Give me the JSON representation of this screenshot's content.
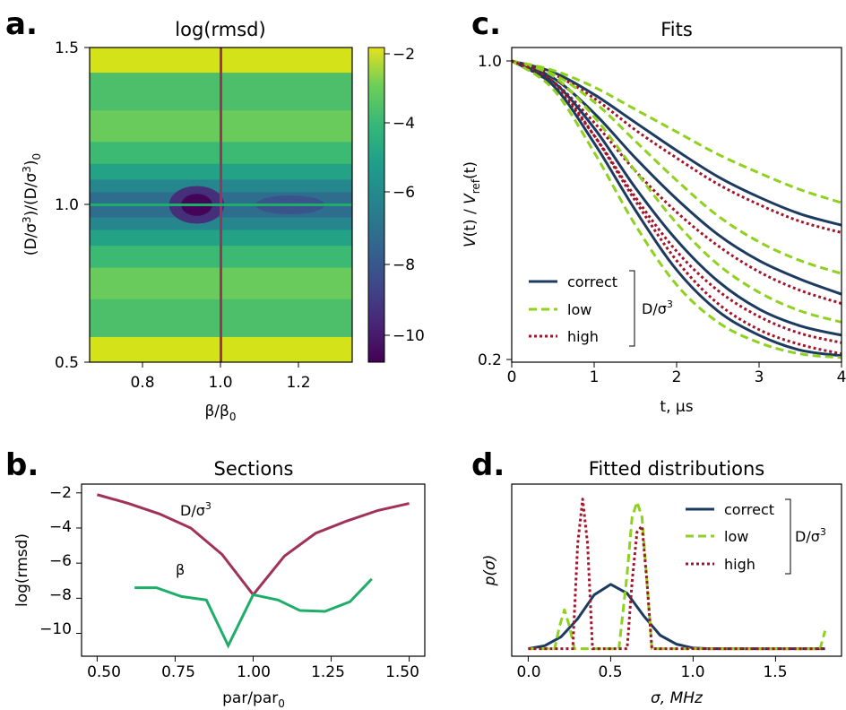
{
  "panels": {
    "a": {
      "letter": "a.",
      "title": "log(rmsd)",
      "xlabel_main": "β/β",
      "xlabel_sub": "0",
      "ylabel_pre": "(D/σ",
      "ylabel_sup1": "3",
      "ylabel_mid": ")/(D/σ",
      "ylabel_sup2": "3",
      "ylabel_post": ")",
      "ylabel_sub": "0",
      "xticks": [
        "0.8",
        "1.0",
        "1.2"
      ],
      "yticks": [
        "0.5",
        "1.0",
        "1.5"
      ],
      "cbar_ticks": [
        "−2",
        "−4",
        "−6",
        "−8",
        "−10"
      ]
    },
    "b": {
      "letter": "b.",
      "title": "Sections",
      "xlabel_main": "par/par",
      "xlabel_sub": "0",
      "ylabel": "log(rmsd)",
      "xticks": [
        "0.50",
        "0.75",
        "1.00",
        "1.25",
        "1.50"
      ],
      "yticks": [
        "−2",
        "−4",
        "−6",
        "−8",
        "−10"
      ],
      "annot_D": "D/σ",
      "annot_D_sup": "3",
      "annot_beta": "β"
    },
    "c": {
      "letter": "c.",
      "title": "Fits",
      "xlabel": "t, μs",
      "ylabel_v": "V",
      "ylabel_t": "(t) / ",
      "ylabel_v2": "V",
      "ylabel_sub": "ref",
      "ylabel_t2": "(t)",
      "xticks": [
        "0",
        "1",
        "2",
        "3",
        "4"
      ],
      "yticks": [
        "1.0",
        "0.2"
      ],
      "legend": [
        "correct",
        "low",
        "high"
      ],
      "legend_group": "D/σ",
      "legend_group_sup": "3"
    },
    "d": {
      "letter": "d.",
      "title": "Fitted distributions",
      "xlabel": "σ, MHz",
      "ylabel": "p(σ)",
      "xticks": [
        "0.0",
        "0.5",
        "1.0",
        "1.5"
      ],
      "legend": [
        "correct",
        "low",
        "high"
      ],
      "legend_group": "D/σ",
      "legend_group_sup": "3"
    }
  },
  "colors": {
    "correct": "#1d3a5f",
    "low": "#8fd11f",
    "high": "#a3152a",
    "D_section": "#a0325a",
    "beta_section": "#1fae6a"
  },
  "chart_data": [
    {
      "panel": "a",
      "type": "heatmap",
      "title": "log(rmsd)",
      "x_range": [
        0.62,
        1.38
      ],
      "y_range": [
        0.5,
        1.5
      ],
      "colorbar_range": [
        -10.7,
        -1.5
      ],
      "colormap": "viridis",
      "crosshair": {
        "x": 1.0,
        "y": 1.0
      },
      "minimum": {
        "x": 0.93,
        "y": 1.0,
        "value": -10.7
      }
    },
    {
      "panel": "b",
      "type": "line",
      "title": "Sections",
      "xlabel": "par/par0",
      "ylabel": "log(rmsd)",
      "xlim": [
        0.45,
        1.55
      ],
      "ylim": [
        -11.3,
        -1.5
      ],
      "series": [
        {
          "name": "D/σ3",
          "x": [
            0.5,
            0.6,
            0.7,
            0.8,
            0.9,
            1.0,
            1.1,
            1.2,
            1.3,
            1.4,
            1.5
          ],
          "y": [
            -2.1,
            -2.6,
            -3.2,
            -4.0,
            -5.5,
            -7.8,
            -5.6,
            -4.3,
            -3.6,
            -3.0,
            -2.6
          ]
        },
        {
          "name": "β",
          "x": [
            0.62,
            0.69,
            0.77,
            0.85,
            0.92,
            1.0,
            1.08,
            1.15,
            1.23,
            1.31,
            1.38
          ],
          "y": [
            -7.4,
            -7.4,
            -7.9,
            -8.1,
            -10.7,
            -7.8,
            -8.1,
            -8.7,
            -8.75,
            -8.2,
            -6.9
          ]
        }
      ]
    },
    {
      "panel": "c",
      "type": "line",
      "title": "Fits",
      "xlabel": "t, μs",
      "ylabel": "V(t) / Vref(t)",
      "xlim": [
        0,
        4
      ],
      "ylim": [
        0.2,
        1.0
      ],
      "x": [
        0,
        0.5,
        1,
        1.5,
        2,
        2.5,
        3,
        3.5,
        4
      ],
      "series": [
        {
          "name": "correct",
          "group": 1,
          "values": [
            1.0,
            0.97,
            0.91,
            0.835,
            0.76,
            0.69,
            0.635,
            0.59,
            0.56
          ]
        },
        {
          "name": "low",
          "group": 1,
          "values": [
            1.0,
            0.975,
            0.93,
            0.87,
            0.81,
            0.75,
            0.7,
            0.655,
            0.62
          ]
        },
        {
          "name": "high",
          "group": 1,
          "values": [
            1.0,
            0.965,
            0.9,
            0.815,
            0.74,
            0.67,
            0.615,
            0.57,
            0.54
          ]
        },
        {
          "name": "correct",
          "group": 2,
          "values": [
            1.0,
            0.955,
            0.86,
            0.74,
            0.63,
            0.535,
            0.465,
            0.415,
            0.375
          ]
        },
        {
          "name": "low",
          "group": 2,
          "values": [
            1.0,
            0.965,
            0.89,
            0.785,
            0.68,
            0.585,
            0.515,
            0.465,
            0.43
          ]
        },
        {
          "name": "high",
          "group": 2,
          "values": [
            1.0,
            0.945,
            0.835,
            0.705,
            0.595,
            0.505,
            0.435,
            0.385,
            0.35
          ]
        },
        {
          "name": "correct",
          "group": 3,
          "values": [
            1.0,
            0.945,
            0.82,
            0.66,
            0.52,
            0.41,
            0.335,
            0.29,
            0.265
          ]
        },
        {
          "name": "low",
          "group": 3,
          "values": [
            1.0,
            0.96,
            0.85,
            0.705,
            0.565,
            0.455,
            0.38,
            0.33,
            0.3
          ]
        },
        {
          "name": "high",
          "group": 3,
          "values": [
            1.0,
            0.935,
            0.8,
            0.635,
            0.49,
            0.385,
            0.315,
            0.27,
            0.245
          ]
        },
        {
          "name": "correct",
          "group": 4,
          "values": [
            1.0,
            0.935,
            0.78,
            0.6,
            0.44,
            0.33,
            0.265,
            0.225,
            0.21
          ]
        },
        {
          "name": "low",
          "group": 4,
          "values": [
            1.0,
            0.925,
            0.755,
            0.56,
            0.4,
            0.3,
            0.245,
            0.215,
            0.205
          ]
        },
        {
          "name": "high",
          "group": 4,
          "values": [
            1.0,
            0.945,
            0.8,
            0.625,
            0.465,
            0.35,
            0.28,
            0.24,
            0.215
          ]
        }
      ]
    },
    {
      "panel": "d",
      "type": "line",
      "title": "Fitted distributions",
      "xlabel": "σ, MHz",
      "ylabel": "p(σ)",
      "xlim": [
        -0.1,
        1.9
      ],
      "ylim": [
        -0.05,
        1.1
      ],
      "series": [
        {
          "name": "correct",
          "x": [
            0.0,
            0.1,
            0.2,
            0.3,
            0.4,
            0.5,
            0.6,
            0.7,
            0.8,
            0.9,
            1.0,
            1.1,
            1.2,
            1.5,
            1.8
          ],
          "y": [
            0.0,
            0.02,
            0.08,
            0.2,
            0.36,
            0.43,
            0.37,
            0.22,
            0.09,
            0.03,
            0.005,
            0.0,
            0.0,
            0.0,
            0.0
          ]
        },
        {
          "name": "low",
          "x": [
            0.0,
            0.16,
            0.19,
            0.22,
            0.25,
            0.28,
            0.55,
            0.6,
            0.63,
            0.66,
            0.69,
            0.72,
            0.75,
            1.0,
            1.77,
            1.8
          ],
          "y": [
            0.0,
            0.0,
            0.15,
            0.26,
            0.15,
            0.0,
            0.0,
            0.5,
            0.88,
            0.98,
            0.88,
            0.45,
            0.0,
            0.0,
            0.0,
            0.12
          ]
        },
        {
          "name": "high",
          "x": [
            0.0,
            0.27,
            0.3,
            0.33,
            0.36,
            0.39,
            0.6,
            0.63,
            0.66,
            0.69,
            0.72,
            0.75,
            1.0,
            1.8
          ],
          "y": [
            0.0,
            0.0,
            0.7,
            1.0,
            0.7,
            0.0,
            0.0,
            0.45,
            0.78,
            0.82,
            0.45,
            0.0,
            0.0,
            0.0
          ]
        }
      ]
    }
  ]
}
